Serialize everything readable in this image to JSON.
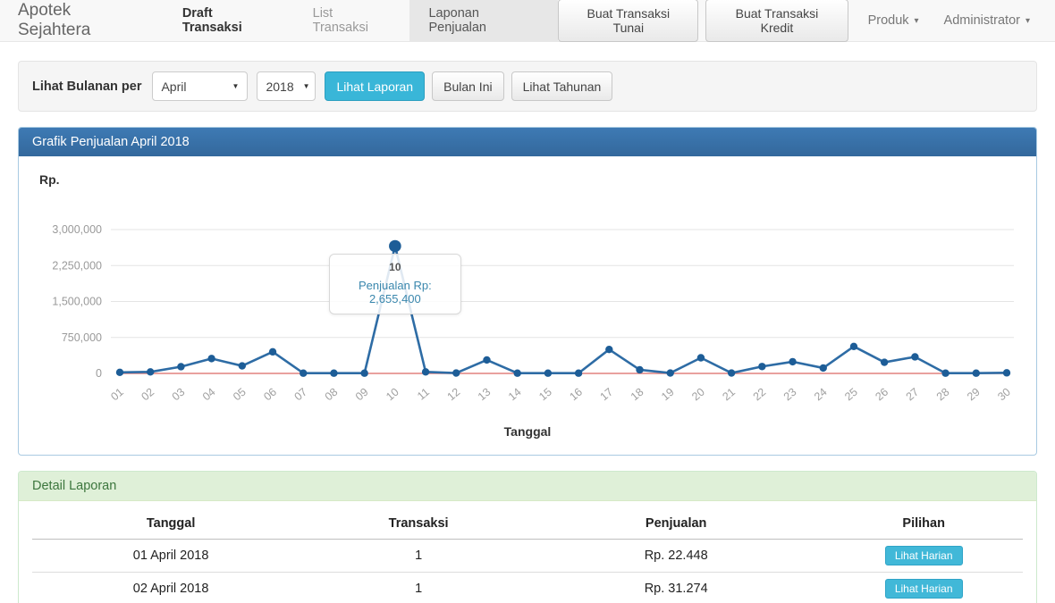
{
  "navbar": {
    "brand": "Apotek Sejahtera",
    "items": [
      {
        "label": "Draft Transaksi",
        "active": false,
        "emphasis": true
      },
      {
        "label": "List Transaksi",
        "active": false,
        "emphasis": false
      },
      {
        "label": "Laponan Penjualan",
        "active": true,
        "emphasis": false
      }
    ],
    "buttons": [
      "Buat Transaksi Tunai",
      "Buat Transaksi Kredit"
    ],
    "dropdowns": [
      "Produk",
      "Administrator"
    ]
  },
  "filter": {
    "label": "Lihat Bulanan per",
    "month_value": "April",
    "year_value": "2018",
    "submit_label": "Lihat Laporan",
    "this_month_label": "Bulan Ini",
    "yearly_label": "Lihat Tahunan"
  },
  "chart_panel": {
    "title": "Grafik Penjualan April 2018",
    "y_unit": "Rp.",
    "x_title": "Tanggal",
    "tooltip": {
      "label": "10",
      "text": "Penjualan Rp: 2,655,400"
    }
  },
  "chart_data": {
    "type": "line",
    "title": "Grafik Penjualan April 2018",
    "xlabel": "Tanggal",
    "ylabel": "Rp.",
    "categories": [
      "01",
      "02",
      "03",
      "04",
      "05",
      "06",
      "07",
      "08",
      "09",
      "10",
      "11",
      "12",
      "13",
      "14",
      "15",
      "16",
      "17",
      "18",
      "19",
      "20",
      "21",
      "22",
      "23",
      "24",
      "25",
      "26",
      "27",
      "28",
      "29",
      "30"
    ],
    "series": [
      {
        "name": "Penjualan",
        "color": "#2e6ca5",
        "point_color": "#1d5d97",
        "values": [
          22448,
          31274,
          140000,
          310000,
          157000,
          450000,
          5000,
          5000,
          5000,
          2655400,
          32000,
          8000,
          281000,
          5000,
          5000,
          5000,
          500000,
          75000,
          8000,
          326000,
          8000,
          144000,
          244000,
          113000,
          563000,
          232000,
          345000,
          5000,
          5000,
          12000
        ]
      },
      {
        "name": "zero-baseline",
        "color": "#e2827f",
        "constant": 0
      }
    ],
    "yticks": [
      0,
      750000,
      1500000,
      2250000,
      3000000
    ],
    "ylim": [
      0,
      3000000
    ],
    "grid": true,
    "legend": "none",
    "highlight": {
      "category": "10",
      "index": 9,
      "value": 2655400,
      "tooltip_text": "Penjualan Rp: 2,655,400"
    }
  },
  "detail_panel": {
    "title": "Detail Laporan",
    "table": {
      "headers": [
        "Tanggal",
        "Transaksi",
        "Penjualan",
        "Pilihan"
      ],
      "rows": [
        {
          "tanggal": "01 April 2018",
          "transaksi": "1",
          "penjualan": "Rp. 22.448",
          "action": "Lihat Harian"
        },
        {
          "tanggal": "02 April 2018",
          "transaksi": "1",
          "penjualan": "Rp. 31.274",
          "action": "Lihat Harian"
        }
      ]
    }
  },
  "colors": {
    "accent_cyan": "#39b6d8",
    "panel_blue_header_top": "#3e7ab4",
    "panel_blue_header_bottom": "#33689c",
    "panel_green_bg": "#dff0d8",
    "panel_green_text": "#3c763d",
    "line_blue": "#2e6ca5",
    "baseline_red": "#e2827f",
    "grid_gray": "#e4e4e4",
    "tick_text": "#9a9a9a"
  }
}
